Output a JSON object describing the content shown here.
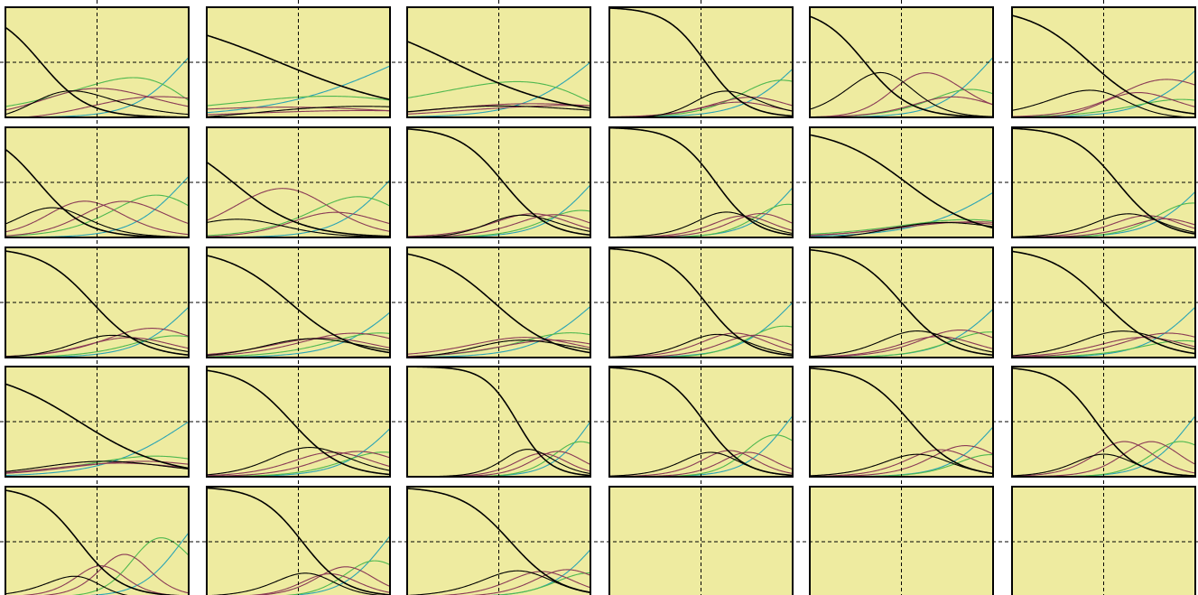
{
  "colors": {
    "background": "#ffffff",
    "panel_fill": "#eeeba0",
    "panel_border": "#000000",
    "crosshair": "#000000",
    "series": [
      "#000000",
      "#8a3a56",
      "#4fb84f",
      "#2aa4b4"
    ]
  },
  "chart_data": {
    "type": "line",
    "title": "",
    "xlabel": "",
    "ylabel": "",
    "grid": true,
    "legend": "none",
    "layout": {
      "rows": 5,
      "cols": 6
    },
    "xlim": [
      -4,
      4
    ],
    "ylim": [
      0,
      1
    ],
    "reference_lines": {
      "x": 0,
      "y": 0.5
    },
    "panels": [
      {
        "id": 1,
        "curves": [
          [
            -2.46,
            0.97
          ],
          [
            -1.4,
            0.65
          ],
          [
            0.38,
            0.53
          ],
          [
            1.79,
            0.38
          ],
          [
            3.8,
            0.9
          ]
        ]
      },
      {
        "id": 2,
        "curves": [
          [
            -0.84,
            0.34
          ],
          [
            0.09,
            0.27
          ],
          [
            1.37,
            0.29
          ],
          [
            2.22,
            0.28
          ],
          [
            4.36,
            0.37
          ]
        ]
      },
      {
        "id": 3,
        "curves": [
          [
            -2.0,
            0.4
          ],
          [
            -1.0,
            0.35
          ],
          [
            0.4,
            0.3
          ],
          [
            1.8,
            0.26
          ],
          [
            4.0,
            0.65
          ]
        ]
      },
      {
        "id": 4,
        "curves": [
          [
            0.2,
            1.15
          ],
          [
            1.1,
            0.9
          ],
          [
            1.73,
            0.85
          ],
          [
            2.6,
            0.85
          ],
          [
            4.3,
            0.8
          ]
        ]
      },
      {
        "id": 5,
        "curves": [
          [
            -1.6,
            1.0
          ],
          [
            0.0,
            1.15
          ],
          [
            1.7,
            0.85
          ],
          [
            2.6,
            0.82
          ],
          [
            3.8,
            0.9
          ]
        ]
      },
      {
        "id": 6,
        "curves": [
          [
            -0.6,
            0.74
          ],
          [
            0.5,
            0.98
          ],
          [
            1.49,
            0.77
          ],
          [
            3.5,
            0.65
          ],
          [
            4.4,
            0.75
          ]
        ]
      },
      {
        "id": 7,
        "curves": [
          [
            -2.56,
            0.96
          ],
          [
            -1.4,
            0.95
          ],
          [
            0.1,
            0.87
          ],
          [
            1.77,
            0.75
          ],
          [
            3.75,
            0.88
          ]
        ]
      },
      {
        "id": 8,
        "curves": [
          [
            -2.85,
            0.67
          ],
          [
            -1.9,
            0.72
          ],
          [
            0.65,
            0.78
          ],
          [
            1.9,
            0.68
          ],
          [
            3.9,
            0.86
          ]
        ]
      },
      {
        "id": 9,
        "curves": [
          [
            0.2,
            1.0
          ],
          [
            1.06,
            0.85
          ],
          [
            2.07,
            0.88
          ],
          [
            3.0,
            0.92
          ],
          [
            4.1,
            0.9
          ]
        ]
      },
      {
        "id": 10,
        "curves": [
          [
            0.64,
            1.13
          ],
          [
            1.48,
            1.1
          ],
          [
            2.2,
            1.1
          ],
          [
            3.0,
            1.1
          ],
          [
            4.2,
            0.95
          ]
        ]
      },
      {
        "id": 11,
        "curves": [
          [
            0.2,
            0.62
          ],
          [
            1.04,
            0.5
          ],
          [
            2.17,
            0.45
          ],
          [
            3.46,
            0.43
          ],
          [
            4.7,
            0.53
          ]
        ]
      },
      {
        "id": 12,
        "curves": [
          [
            0.6,
            1.0
          ],
          [
            1.48,
            0.98
          ],
          [
            2.3,
            0.98
          ],
          [
            3.0,
            0.98
          ],
          [
            4.4,
            0.85
          ]
        ]
      },
      {
        "id": 13,
        "curves": [
          [
            -0.21,
            0.89
          ],
          [
            0.75,
            0.77
          ],
          [
            1.72,
            0.73
          ],
          [
            3.19,
            0.75
          ],
          [
            4.2,
            0.82
          ]
        ]
      },
      {
        "id": 14,
        "curves": [
          [
            -0.38,
            0.7
          ],
          [
            0.64,
            0.62
          ],
          [
            1.79,
            0.63
          ],
          [
            3.19,
            0.65
          ],
          [
            4.5,
            0.72
          ]
        ]
      },
      {
        "id": 15,
        "curves": [
          [
            -0.21,
            0.73
          ],
          [
            0.67,
            0.61
          ],
          [
            1.86,
            0.63
          ],
          [
            2.87,
            0.63
          ],
          [
            4.2,
            0.72
          ]
        ]
      },
      {
        "id": 16,
        "curves": [
          [
            0.2,
            1.05
          ],
          [
            1.03,
            1.0
          ],
          [
            1.93,
            1.0
          ],
          [
            2.75,
            1.0
          ],
          [
            4.0,
            0.85
          ]
        ]
      },
      {
        "id": 17,
        "curves": [
          [
            0.0,
            0.95
          ],
          [
            1.07,
            0.88
          ],
          [
            1.96,
            0.85
          ],
          [
            3.16,
            0.85
          ],
          [
            4.3,
            0.8
          ]
        ]
      },
      {
        "id": 18,
        "curves": [
          [
            0.0,
            0.82
          ],
          [
            1.24,
            0.75
          ],
          [
            2.23,
            0.75
          ],
          [
            3.43,
            0.75
          ],
          [
            4.2,
            0.82
          ]
        ]
      },
      {
        "id": 19,
        "curves": [
          [
            -0.78,
            0.52
          ],
          [
            0.33,
            0.48
          ],
          [
            1.37,
            0.47
          ],
          [
            2.57,
            0.47
          ],
          [
            4.0,
            0.55
          ]
        ]
      },
      {
        "id": 20,
        "curves": [
          [
            -0.3,
            0.9
          ],
          [
            0.96,
            0.82
          ],
          [
            2.06,
            0.82
          ],
          [
            3.2,
            0.82
          ],
          [
            4.3,
            0.83
          ]
        ]
      },
      {
        "id": 21,
        "curves": [
          [
            0.8,
            1.4
          ],
          [
            1.55,
            1.3
          ],
          [
            2.21,
            1.3
          ],
          [
            2.93,
            1.3
          ],
          [
            4.0,
            1.15
          ]
        ]
      },
      {
        "id": 22,
        "curves": [
          [
            0.14,
            1.13
          ],
          [
            0.91,
            1.2
          ],
          [
            1.7,
            1.25
          ],
          [
            2.42,
            1.25
          ],
          [
            3.8,
            1.05
          ]
        ]
      },
      {
        "id": 23,
        "curves": [
          [
            0.37,
            0.96
          ],
          [
            1.21,
            1.0
          ],
          [
            2.21,
            1.0
          ],
          [
            3.37,
            1.0
          ],
          [
            4.2,
            0.95
          ]
        ]
      },
      {
        "id": 24,
        "curves": [
          [
            -0.33,
            1.13
          ],
          [
            0.4,
            1.14
          ],
          [
            1.53,
            1.2
          ],
          [
            2.63,
            1.2
          ],
          [
            3.8,
            1.05
          ]
        ]
      },
      {
        "id": 25,
        "curves": [
          [
            -0.79,
            1.05
          ],
          [
            -0.22,
            1.35
          ],
          [
            0.62,
            1.4
          ],
          [
            1.78,
            1.4
          ],
          [
            3.7,
            1.1
          ]
        ]
      },
      {
        "id": 26,
        "curves": [
          [
            0.17,
            1.05
          ],
          [
            0.93,
            1.2
          ],
          [
            1.65,
            1.15
          ],
          [
            2.6,
            1.2
          ],
          [
            3.8,
            1.05
          ]
        ]
      },
      {
        "id": 27,
        "curves": [
          [
            0.51,
            0.91
          ],
          [
            1.51,
            1.0
          ],
          [
            2.42,
            1.05
          ],
          [
            3.4,
            1.0
          ],
          [
            4.3,
            0.95
          ]
        ]
      },
      {
        "id": 28,
        "curves": []
      },
      {
        "id": 29,
        "curves": []
      },
      {
        "id": 30,
        "curves": []
      }
    ]
  }
}
